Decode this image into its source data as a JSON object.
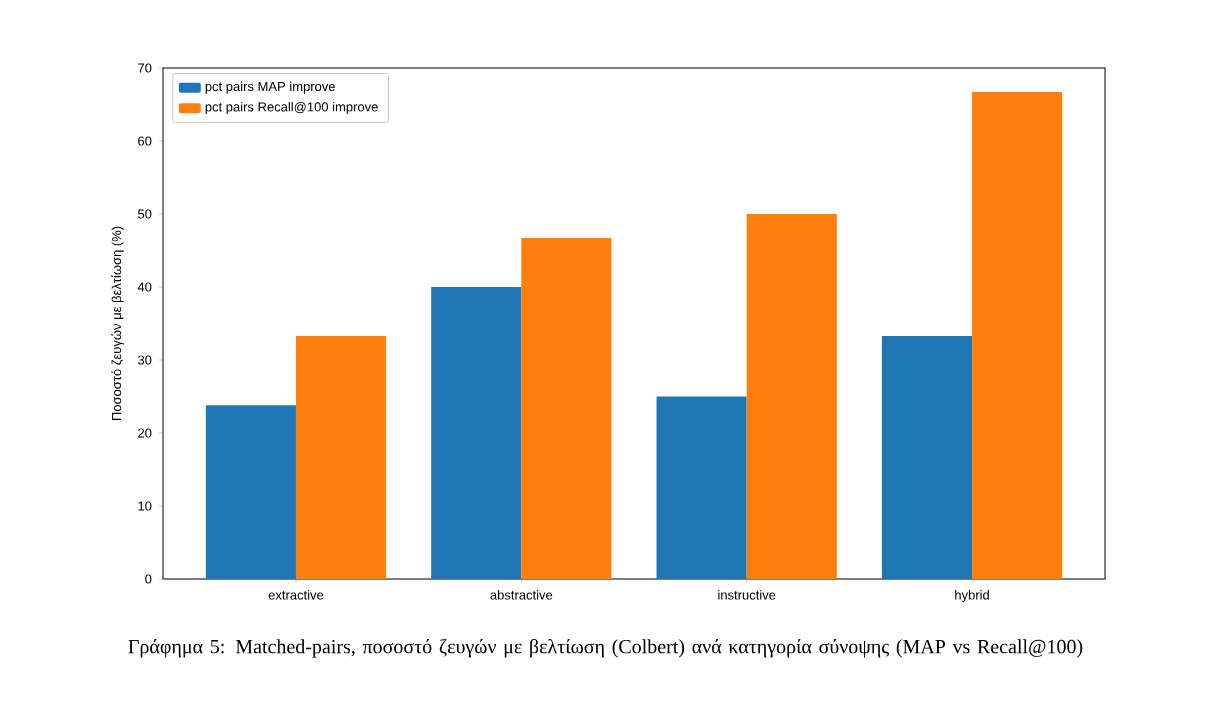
{
  "chart_data": {
    "type": "bar",
    "categories": [
      "extractive",
      "abstractive",
      "instructive",
      "hybrid"
    ],
    "series": [
      {
        "name": "pct pairs MAP improve",
        "color": "#1f77b4",
        "values": [
          23.8,
          40.0,
          25.0,
          33.3
        ]
      },
      {
        "name": "pct pairs Recall@100 improve",
        "color": "#ff7f0e",
        "values": [
          33.3,
          46.7,
          50.0,
          66.7
        ]
      }
    ],
    "ylabel": "Ποσοστό ζευγών με βελτίωση (%)",
    "ylim": [
      0,
      70
    ],
    "yticks": [
      0,
      10,
      20,
      30,
      40,
      50,
      60,
      70
    ],
    "legend": "top left",
    "annotations": [
      "Γράφημα 5: Matched-pairs, ποσοστό ζευγών με βελτίωση (Colbert) ανά κατηγορία σύνοψης (MAP vs Recall@100)"
    ]
  }
}
